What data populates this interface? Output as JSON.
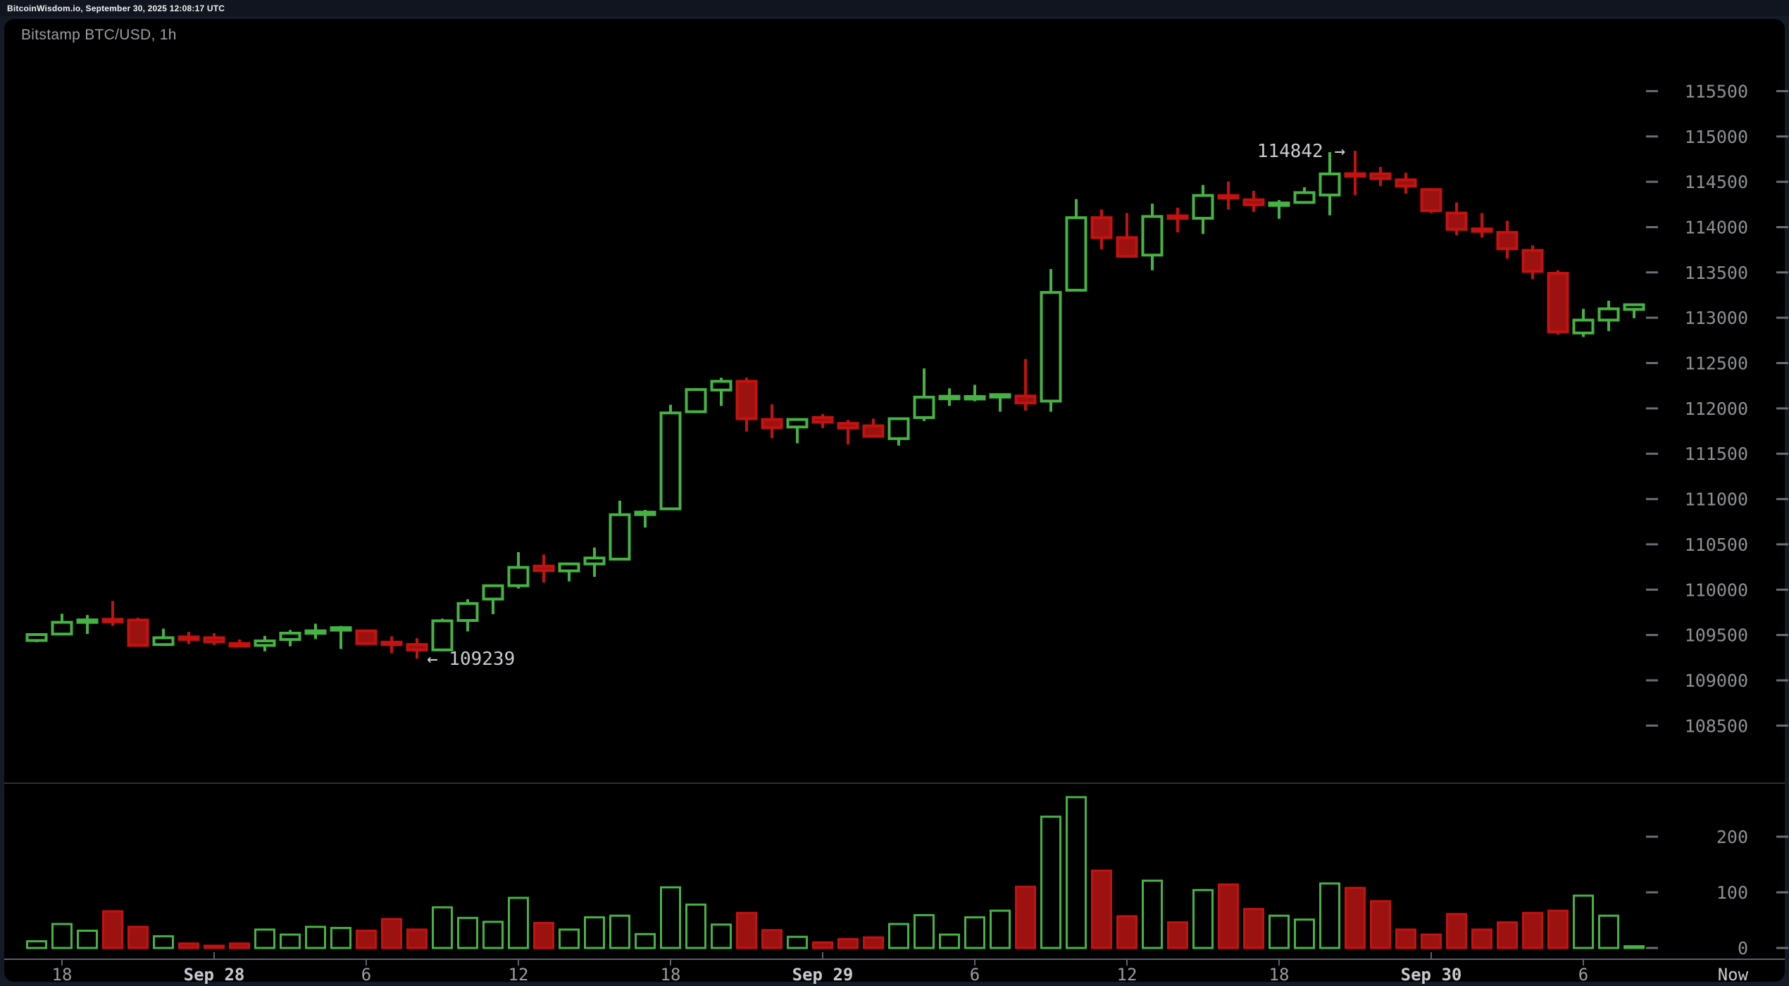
{
  "status_bar": {
    "text": "BitcoinWisdom.io, September 30, 2025 12:08:17 UTC"
  },
  "chart": {
    "title": "Bitstamp BTC/USD, 1h"
  },
  "theme": {
    "outer_bg": "#151a27",
    "topbar_bg": "#11151f",
    "panel_bg": "#000000",
    "up_color": "#47b244",
    "down_fill": "#9c1210",
    "down_stroke": "#c31310",
    "axis_dash": "#6a6d72",
    "axis_text": "#8d9093",
    "date_text": "#c6c9cd",
    "hour_text": "#9a9da1",
    "annotation_text": "#caccd0",
    "separator": "#303030",
    "time_axis_line": "#5c616b"
  },
  "chart_data": {
    "type": "candlestick",
    "title": "Bitstamp BTC/USD, 1h",
    "exchange": "Bitstamp",
    "pair": "BTC/USD",
    "interval": "1h",
    "price_axis": {
      "ticks": [
        115500,
        115000,
        114500,
        114000,
        113500,
        113000,
        112500,
        112000,
        111500,
        111000,
        110500,
        110000,
        109500,
        109000,
        108500
      ],
      "side": "right"
    },
    "volume_axis": {
      "ticks": [
        200,
        100,
        0
      ],
      "side": "right"
    },
    "time_axis": {
      "labels": [
        {
          "text": "18",
          "hours": -6,
          "kind": "hour"
        },
        {
          "text": "Sep 28",
          "hours": 0,
          "kind": "date"
        },
        {
          "text": "6",
          "hours": 6,
          "kind": "hour"
        },
        {
          "text": "12",
          "hours": 12,
          "kind": "hour"
        },
        {
          "text": "18",
          "hours": 18,
          "kind": "hour"
        },
        {
          "text": "Sep 29",
          "hours": 24,
          "kind": "date"
        },
        {
          "text": "6",
          "hours": 30,
          "kind": "hour"
        },
        {
          "text": "12",
          "hours": 36,
          "kind": "hour"
        },
        {
          "text": "18",
          "hours": 42,
          "kind": "hour"
        },
        {
          "text": "Sep 30",
          "hours": 48,
          "kind": "date"
        },
        {
          "text": "6",
          "hours": 54,
          "kind": "hour"
        },
        {
          "text": "Now",
          "hours": 59.9,
          "kind": "now"
        }
      ]
    },
    "annotations": {
      "high": {
        "text": "114842 →",
        "value": 114842,
        "candle_index": 52
      },
      "low": {
        "text": "← 109239",
        "value": 109239,
        "candle_index": 15
      }
    },
    "candles": [
      [
        "Sep 27 17:00",
        109440,
        109520,
        109420,
        109505,
        12
      ],
      [
        "Sep 27 18:00",
        109510,
        109735,
        109500,
        109640,
        43
      ],
      [
        "Sep 27 19:00",
        109645,
        109720,
        109510,
        109660,
        31
      ],
      [
        "Sep 27 20:00",
        109665,
        109875,
        109600,
        109655,
        66
      ],
      [
        "Sep 27 21:00",
        109665,
        109690,
        109370,
        109385,
        38
      ],
      [
        "Sep 27 22:00",
        109395,
        109570,
        109380,
        109470,
        21
      ],
      [
        "Sep 27 23:00",
        109470,
        109535,
        109400,
        109460,
        8
      ],
      [
        "Sep 28 00:00",
        109470,
        109520,
        109390,
        109425,
        4
      ],
      [
        "Sep 28 01:00",
        109405,
        109450,
        109370,
        109380,
        8
      ],
      [
        "Sep 28 02:00",
        109385,
        109490,
        109320,
        109435,
        33
      ],
      [
        "Sep 28 03:00",
        109450,
        109555,
        109375,
        109520,
        24
      ],
      [
        "Sep 28 04:00",
        109530,
        109625,
        109455,
        109535,
        38
      ],
      [
        "Sep 28 05:00",
        109565,
        109600,
        109345,
        109570,
        36
      ],
      [
        "Sep 28 06:00",
        109545,
        109560,
        109395,
        109405,
        31
      ],
      [
        "Sep 28 07:00",
        109410,
        109485,
        109300,
        109405,
        52
      ],
      [
        "Sep 28 08:00",
        109395,
        109465,
        109239,
        109335,
        33
      ],
      [
        "Sep 28 09:00",
        109335,
        109680,
        109320,
        109656,
        73
      ],
      [
        "Sep 28 10:00",
        109660,
        109895,
        109540,
        109847,
        54
      ],
      [
        "Sep 28 11:00",
        109896,
        110050,
        109730,
        110043,
        47
      ],
      [
        "Sep 28 12:00",
        110044,
        110414,
        110013,
        110246,
        90
      ],
      [
        "Sep 28 13:00",
        110260,
        110388,
        110079,
        110210,
        45
      ],
      [
        "Sep 28 14:00",
        110207,
        110290,
        110091,
        110284,
        33
      ],
      [
        "Sep 28 15:00",
        110284,
        110465,
        110142,
        110349,
        55
      ],
      [
        "Sep 28 16:00",
        110337,
        110982,
        110330,
        110827,
        58
      ],
      [
        "Sep 28 17:00",
        110830,
        110880,
        110685,
        110853,
        25
      ],
      [
        "Sep 28 18:00",
        110892,
        112041,
        110880,
        111950,
        109
      ],
      [
        "Sep 28 19:00",
        111963,
        112220,
        111950,
        112208,
        78
      ],
      [
        "Sep 28 20:00",
        112203,
        112338,
        112027,
        112299,
        42
      ],
      [
        "Sep 28 21:00",
        112299,
        112338,
        111744,
        111886,
        63
      ],
      [
        "Sep 28 22:00",
        111878,
        112045,
        111671,
        111788,
        32
      ],
      [
        "Sep 28 23:00",
        111795,
        111890,
        111615,
        111878,
        20
      ],
      [
        "Sep 29 00:00",
        111899,
        111938,
        111783,
        111847,
        10
      ],
      [
        "Sep 29 01:00",
        111834,
        111872,
        111602,
        111783,
        16
      ],
      [
        "Sep 29 02:00",
        111808,
        111886,
        111679,
        111692,
        19
      ],
      [
        "Sep 29 03:00",
        111666,
        111890,
        111589,
        111886,
        43
      ],
      [
        "Sep 29 04:00",
        111899,
        112441,
        111860,
        112124,
        59
      ],
      [
        "Sep 29 05:00",
        112118,
        112221,
        112027,
        112122,
        24
      ],
      [
        "Sep 29 06:00",
        112110,
        112260,
        112079,
        112125,
        55
      ],
      [
        "Sep 29 07:00",
        112136,
        112160,
        111963,
        112140,
        67
      ],
      [
        "Sep 29 08:00",
        112136,
        112544,
        111976,
        112059,
        110
      ],
      [
        "Sep 29 09:00",
        112080,
        113537,
        111963,
        113279,
        236
      ],
      [
        "Sep 29 10:00",
        113304,
        114310,
        113290,
        114104,
        271
      ],
      [
        "Sep 29 11:00",
        114104,
        114194,
        113756,
        113884,
        139
      ],
      [
        "Sep 29 12:00",
        113884,
        114155,
        113665,
        113678,
        57
      ],
      [
        "Sep 29 13:00",
        113691,
        114259,
        113524,
        114117,
        121
      ],
      [
        "Sep 29 14:00",
        114120,
        114215,
        113942,
        114100,
        46
      ],
      [
        "Sep 29 15:00",
        114097,
        114465,
        113924,
        114349,
        104
      ],
      [
        "Sep 29 16:00",
        114340,
        114504,
        114194,
        114330,
        114
      ],
      [
        "Sep 29 17:00",
        114302,
        114400,
        114168,
        114246,
        70
      ],
      [
        "Sep 29 18:00",
        114250,
        114298,
        114091,
        114255,
        58
      ],
      [
        "Sep 29 19:00",
        114272,
        114440,
        114265,
        114380,
        51
      ],
      [
        "Sep 29 20:00",
        114354,
        114827,
        114130,
        114586,
        116
      ],
      [
        "Sep 29 21:00",
        114580,
        114842,
        114354,
        114570,
        108
      ],
      [
        "Sep 29 22:00",
        114587,
        114664,
        114452,
        114535,
        84
      ],
      [
        "Sep 29 23:00",
        114522,
        114600,
        114368,
        114452,
        33
      ],
      [
        "Sep 30 00:00",
        114414,
        114430,
        114155,
        114181,
        24
      ],
      [
        "Sep 30 01:00",
        114155,
        114272,
        113911,
        113975,
        61
      ],
      [
        "Sep 30 02:00",
        113970,
        114155,
        113885,
        113963,
        33
      ],
      [
        "Sep 30 03:00",
        113942,
        114070,
        113652,
        113761,
        46
      ],
      [
        "Sep 30 04:00",
        113743,
        113800,
        113426,
        113511,
        63
      ],
      [
        "Sep 30 05:00",
        113490,
        113524,
        112814,
        112845,
        67
      ],
      [
        "Sep 30 06:00",
        112832,
        113098,
        112788,
        112974,
        94
      ],
      [
        "Sep 30 07:00",
        112974,
        113188,
        112853,
        113098,
        58
      ],
      [
        "Sep 30 08:00",
        113092,
        113143,
        112995,
        113143,
        3
      ]
    ]
  }
}
